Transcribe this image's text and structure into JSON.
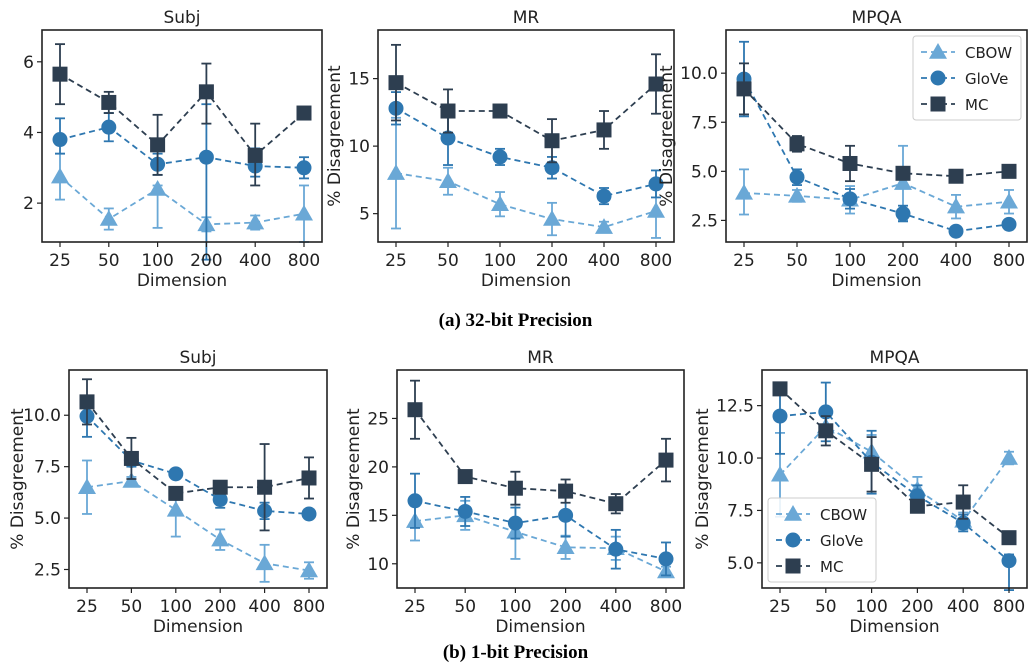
{
  "captions": {
    "a": "(a) 32-bit Precision",
    "b": "(b) 1-bit Precision"
  },
  "colors": {
    "CBOW": "#6aa8d6",
    "GloVe": "#2e77b0",
    "MC": "#2d3e50"
  },
  "chart_data": [
    {
      "type": "line",
      "title": "Subj",
      "xlabel": "Dimension",
      "ylabel": "% Disagreement",
      "categories": [
        "25",
        "50",
        "100",
        "200",
        "400",
        "800"
      ],
      "ylim": [
        0.9,
        6.9
      ],
      "yticks": [
        2,
        4,
        6
      ],
      "yticklabels": [
        "2",
        "4",
        "6"
      ],
      "legend": null,
      "series": [
        {
          "name": "CBOW",
          "marker": "triangle",
          "values": [
            2.75,
            1.55,
            2.4,
            1.4,
            1.45,
            1.7
          ],
          "err_low": [
            0.65,
            0.3,
            1.1,
            0.2,
            0.2,
            0.8
          ],
          "err_high": [
            0.65,
            0.3,
            0.1,
            0.2,
            0.2,
            0.8
          ]
        },
        {
          "name": "GloVe",
          "marker": "circle",
          "values": [
            3.8,
            4.15,
            3.1,
            3.3,
            3.05,
            3.0
          ],
          "err_low": [
            0.4,
            0.4,
            0.3,
            2.9,
            0.3,
            0.3
          ],
          "err_high": [
            0.6,
            0.4,
            0.3,
            1.5,
            0.5,
            0.3
          ]
        },
        {
          "name": "MC",
          "marker": "square",
          "values": [
            5.65,
            4.85,
            3.65,
            5.15,
            3.35,
            4.55
          ],
          "err_low": [
            0.85,
            0.3,
            0.85,
            0.9,
            0.85,
            0.1
          ],
          "err_high": [
            0.85,
            0.3,
            0.85,
            0.8,
            0.9,
            0.1
          ]
        }
      ]
    },
    {
      "type": "line",
      "title": "MR",
      "xlabel": "Dimension",
      "ylabel": "% Disagreement",
      "categories": [
        "25",
        "50",
        "100",
        "200",
        "400",
        "800"
      ],
      "ylim": [
        2.9,
        18.6
      ],
      "yticks": [
        5,
        10,
        15
      ],
      "yticklabels": [
        "5",
        "10",
        "15"
      ],
      "legend": null,
      "series": [
        {
          "name": "CBOW",
          "marker": "triangle",
          "values": [
            8.0,
            7.4,
            5.7,
            4.6,
            4.0,
            5.2
          ],
          "err_low": [
            4.1,
            1.0,
            0.9,
            1.2,
            0.4,
            2.0
          ],
          "err_high": [
            4.1,
            1.0,
            0.9,
            1.2,
            0.4,
            2.0
          ]
        },
        {
          "name": "GloVe",
          "marker": "circle",
          "values": [
            12.8,
            10.6,
            9.2,
            8.4,
            6.3,
            7.2
          ],
          "err_low": [
            1.2,
            2.0,
            0.6,
            0.8,
            0.6,
            1.0
          ],
          "err_high": [
            1.2,
            2.0,
            0.6,
            0.8,
            0.6,
            1.0
          ]
        },
        {
          "name": "MC",
          "marker": "square",
          "values": [
            14.7,
            12.6,
            12.6,
            10.4,
            11.2,
            14.6
          ],
          "err_low": [
            2.8,
            1.6,
            0.2,
            1.6,
            1.4,
            2.2
          ],
          "err_high": [
            2.8,
            1.6,
            0.2,
            1.6,
            1.4,
            2.2
          ]
        }
      ]
    },
    {
      "type": "line",
      "title": "MPQA",
      "xlabel": "Dimension",
      "ylabel": "% Disagreement",
      "categories": [
        "25",
        "50",
        "100",
        "200",
        "400",
        "800"
      ],
      "ylim": [
        1.4,
        12.2
      ],
      "yticks": [
        2.5,
        5.0,
        7.5,
        10.0
      ],
      "yticklabels": [
        "2.5",
        "5.0",
        "7.5",
        "10.0"
      ],
      "legend": "top-right",
      "series": [
        {
          "name": "CBOW",
          "marker": "triangle",
          "values": [
            3.9,
            3.75,
            3.55,
            4.4,
            3.2,
            3.45
          ],
          "err_low": [
            1.1,
            0.3,
            0.7,
            1.9,
            0.6,
            0.6
          ],
          "err_high": [
            1.2,
            0.3,
            0.7,
            1.9,
            0.6,
            0.6
          ]
        },
        {
          "name": "GloVe",
          "marker": "circle",
          "values": [
            9.7,
            4.7,
            3.6,
            2.85,
            1.95,
            2.3
          ],
          "err_low": [
            1.9,
            0.4,
            0.5,
            0.4,
            0.2,
            0.25
          ],
          "err_high": [
            1.9,
            0.4,
            0.5,
            0.4,
            0.2,
            0.25
          ]
        },
        {
          "name": "MC",
          "marker": "square",
          "values": [
            9.2,
            6.4,
            5.4,
            4.9,
            4.75,
            5.0
          ],
          "err_low": [
            1.3,
            0.4,
            0.9,
            0.2,
            0.2,
            0.1
          ],
          "err_high": [
            1.3,
            0.4,
            0.9,
            0.2,
            0.2,
            0.1
          ]
        }
      ]
    },
    {
      "type": "line",
      "title": "Subj",
      "xlabel": "Dimension",
      "ylabel": "% Disagreement",
      "categories": [
        "25",
        "50",
        "100",
        "200",
        "400",
        "800"
      ],
      "ylim": [
        1.6,
        12.2
      ],
      "yticks": [
        2.5,
        5.0,
        7.5,
        10.0
      ],
      "yticklabels": [
        "2.5",
        "5.0",
        "7.5",
        "10.0"
      ],
      "legend": null,
      "series": [
        {
          "name": "CBOW",
          "marker": "triangle",
          "values": [
            6.5,
            6.8,
            5.4,
            3.95,
            2.8,
            2.45
          ],
          "err_low": [
            1.3,
            0.2,
            1.3,
            0.5,
            0.9,
            0.4
          ],
          "err_high": [
            1.3,
            0.2,
            0.5,
            0.5,
            0.9,
            0.4
          ]
        },
        {
          "name": "GloVe",
          "marker": "circle",
          "values": [
            9.95,
            7.8,
            7.15,
            5.9,
            5.35,
            5.2
          ],
          "err_low": [
            1.0,
            0.3,
            0.2,
            0.4,
            0.4,
            0.2
          ],
          "err_high": [
            1.0,
            0.3,
            0.2,
            0.4,
            0.4,
            0.2
          ]
        },
        {
          "name": "MC",
          "marker": "square",
          "values": [
            10.65,
            7.9,
            6.2,
            6.5,
            6.5,
            6.95
          ],
          "err_low": [
            1.1,
            1.0,
            0.2,
            0.2,
            2.1,
            1.0
          ],
          "err_high": [
            1.1,
            1.0,
            0.2,
            0.2,
            2.1,
            1.0
          ]
        }
      ]
    },
    {
      "type": "line",
      "title": "MR",
      "xlabel": "Dimension",
      "ylabel": "% Disagreement",
      "categories": [
        "25",
        "50",
        "100",
        "200",
        "400",
        "800"
      ],
      "ylim": [
        7.5,
        30.0
      ],
      "yticks": [
        10,
        15,
        20,
        25
      ],
      "yticklabels": [
        "10",
        "15",
        "20",
        "25"
      ],
      "legend": null,
      "series": [
        {
          "name": "CBOW",
          "marker": "triangle",
          "values": [
            14.4,
            15.0,
            13.3,
            11.7,
            11.6,
            9.2
          ],
          "err_low": [
            2.0,
            1.5,
            2.8,
            1.2,
            1.2,
            0.5
          ],
          "err_high": [
            2.0,
            1.5,
            2.8,
            1.2,
            1.2,
            0.5
          ]
        },
        {
          "name": "GloVe",
          "marker": "circle",
          "values": [
            16.5,
            15.4,
            14.2,
            15.0,
            11.5,
            10.5
          ],
          "err_low": [
            2.8,
            1.5,
            1.6,
            2.2,
            2.0,
            1.7
          ],
          "err_high": [
            2.8,
            1.5,
            1.6,
            2.2,
            2.0,
            1.7
          ]
        },
        {
          "name": "MC",
          "marker": "square",
          "values": [
            25.9,
            19.0,
            17.8,
            17.5,
            16.2,
            20.7
          ],
          "err_low": [
            3.0,
            0.2,
            1.7,
            1.2,
            1.0,
            2.2
          ],
          "err_high": [
            3.0,
            0.2,
            1.7,
            1.2,
            1.0,
            2.2
          ]
        }
      ]
    },
    {
      "type": "line",
      "title": "MPQA",
      "xlabel": "Dimension",
      "ylabel": "% Disagreement",
      "categories": [
        "25",
        "50",
        "100",
        "200",
        "400",
        "800"
      ],
      "ylim": [
        3.8,
        14.2
      ],
      "yticks": [
        5.0,
        7.5,
        10.0,
        12.5
      ],
      "yticklabels": [
        "5.0",
        "7.5",
        "10.0",
        "12.5"
      ],
      "legend": "bottom-left",
      "series": [
        {
          "name": "CBOW",
          "marker": "triangle",
          "values": [
            9.2,
            11.5,
            10.3,
            8.5,
            7.0,
            10.0
          ],
          "err_low": [
            2.0,
            0.5,
            0.8,
            0.6,
            0.4,
            0.3
          ],
          "err_high": [
            2.0,
            0.5,
            0.8,
            0.6,
            0.4,
            0.3
          ]
        },
        {
          "name": "GloVe",
          "marker": "circle",
          "values": [
            12.0,
            12.2,
            9.8,
            8.2,
            6.9,
            5.1
          ],
          "err_low": [
            1.8,
            1.4,
            1.5,
            0.5,
            0.4,
            1.4
          ],
          "err_high": [
            1.0,
            1.4,
            1.5,
            0.5,
            0.4,
            0.3
          ]
        },
        {
          "name": "MC",
          "marker": "square",
          "values": [
            13.3,
            11.3,
            9.7,
            7.7,
            7.9,
            6.2
          ],
          "err_low": [
            0.2,
            0.7,
            1.3,
            0.2,
            0.8,
            0.2
          ],
          "err_high": [
            0.2,
            0.7,
            1.3,
            0.2,
            0.8,
            0.2
          ]
        }
      ]
    }
  ]
}
